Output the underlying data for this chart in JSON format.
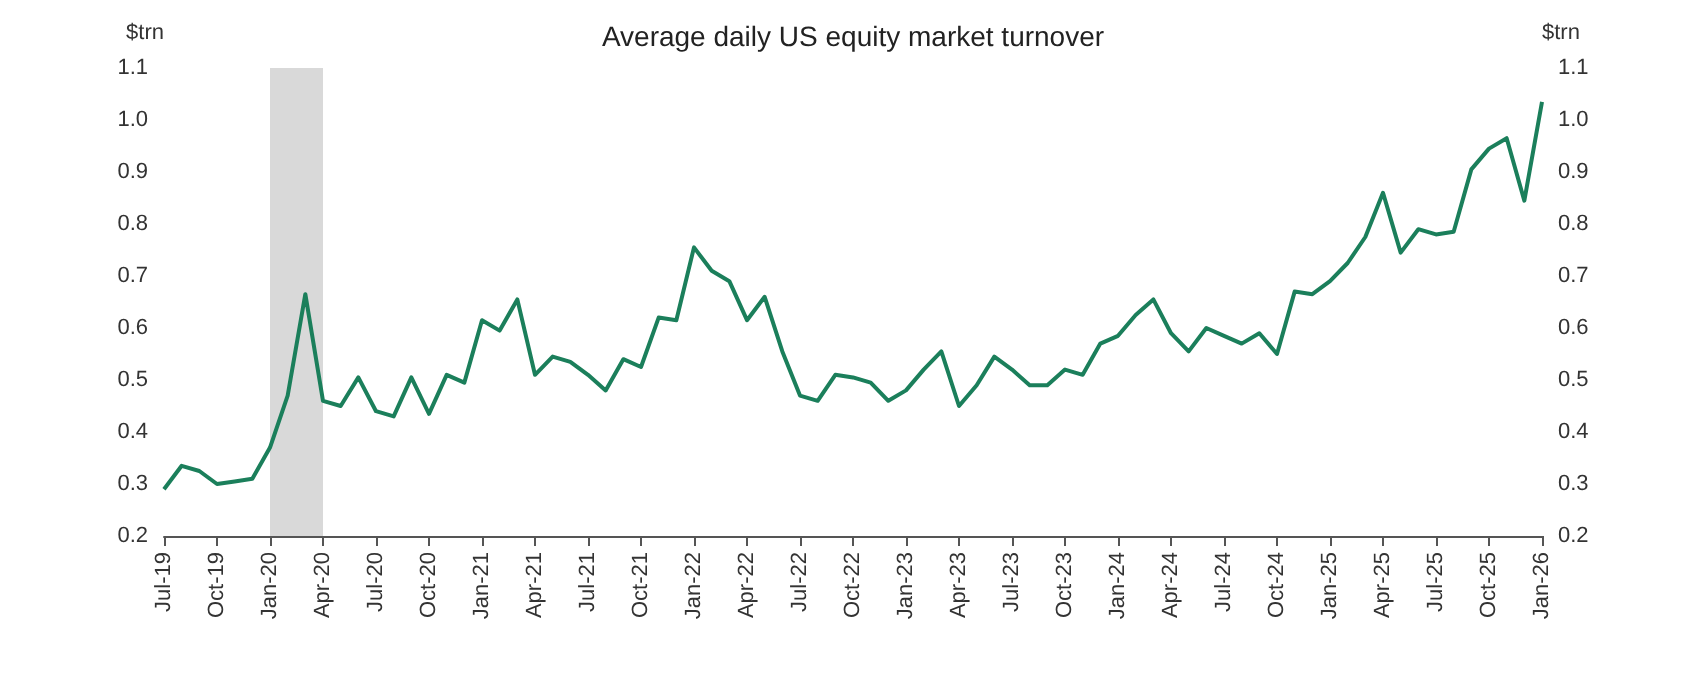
{
  "chart_data": {
    "type": "line",
    "title": "Average daily US equity market turnover",
    "ylabel": "$trn",
    "y2label": "$trn",
    "categories": [
      "Jul-19",
      null,
      null,
      "Oct-19",
      null,
      null,
      "Jan-20",
      null,
      null,
      "Apr-20",
      null,
      null,
      "Jul-20",
      null,
      null,
      "Oct-20",
      null,
      null,
      "Jan-21",
      null,
      null,
      "Apr-21",
      null,
      null,
      "Jul-21",
      null,
      null,
      "Oct-21",
      null,
      null,
      "Jan-22",
      null,
      null,
      "Apr-22",
      null,
      null,
      "Jul-22",
      null,
      null,
      "Oct-22",
      null,
      null,
      "Jan-23",
      null,
      null,
      "Apr-23",
      null,
      null,
      "Jul-23",
      null,
      null,
      "Oct-23",
      null,
      null,
      "Jan-24",
      null,
      null,
      "Apr-24",
      null,
      null,
      "Jul-24",
      null,
      null,
      "Oct-24",
      null,
      null,
      "Jan-25",
      null,
      null,
      "Apr-25",
      null,
      null,
      "Jul-25",
      null,
      null,
      "Oct-25",
      null,
      null,
      "Jan-26"
    ],
    "series": [
      {
        "color": "#1b7f5b",
        "values": [
          0.29,
          0.335,
          0.325,
          0.3,
          0.305,
          0.31,
          0.37,
          0.47,
          0.665,
          0.46,
          0.45,
          0.505,
          0.44,
          0.43,
          0.505,
          0.435,
          0.51,
          0.495,
          0.615,
          0.595,
          0.655,
          0.51,
          0.545,
          0.535,
          0.51,
          0.48,
          0.54,
          0.525,
          0.62,
          0.615,
          0.755,
          0.71,
          0.69,
          0.615,
          0.66,
          0.555,
          0.47,
          0.46,
          0.51,
          0.505,
          0.495,
          0.46,
          0.48,
          0.52,
          0.555,
          0.45,
          0.49,
          0.545,
          0.52,
          0.49,
          0.49,
          0.52,
          0.51,
          0.57,
          0.585,
          0.625,
          0.655,
          0.59,
          0.555,
          0.6,
          0.585,
          0.57,
          0.59,
          0.55,
          0.67,
          0.665,
          0.69,
          0.725,
          0.775,
          0.86,
          0.745,
          0.79,
          0.78,
          0.785,
          0.905,
          0.945,
          0.965,
          0.845,
          1.035
        ]
      }
    ],
    "ylim": [
      0.2,
      1.1
    ],
    "yticks": [
      0.2,
      0.3,
      0.4,
      0.5,
      0.6,
      0.7,
      0.8,
      0.9,
      {
        "value": 1,
        "label": "1.0"
      },
      1.1
    ],
    "y2lim": [
      0.2,
      1.1
    ],
    "y2ticks": [
      0.2,
      0.3,
      0.4,
      0.5,
      0.6,
      0.7,
      0.8,
      0.9,
      {
        "value": 1,
        "label": "1.0"
      },
      1.1
    ],
    "bands": [
      {
        "axis": "x",
        "from": "Jan-20",
        "to": "Apr-20",
        "color": "#d9d9d9"
      }
    ],
    "grid": false,
    "marker": "none",
    "line_style": "solid"
  }
}
